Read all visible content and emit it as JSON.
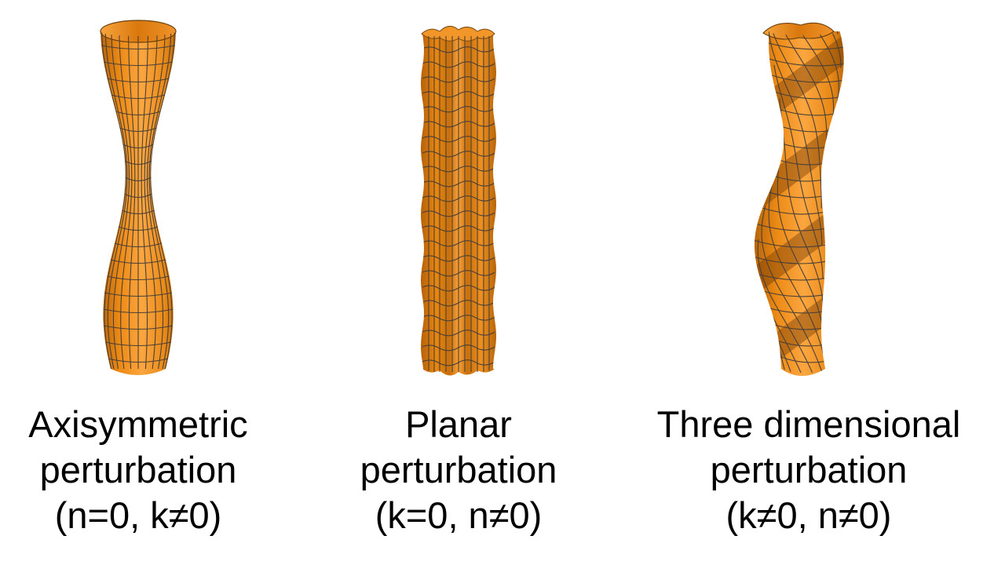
{
  "colors": {
    "surface_light": "#f9a23e",
    "surface_mid": "#e8860f",
    "surface_dark": "#a85a05",
    "mesh": "#4a4038",
    "text": "#000000"
  },
  "panels": [
    {
      "id": "axisymmetric",
      "caption": {
        "line1": "Axisymmetric",
        "line2": "perturbation",
        "line3": "(n=0, k≠0)"
      }
    },
    {
      "id": "planar",
      "caption": {
        "line1": "Planar",
        "line2": "perturbation",
        "line3": "(k=0, n≠0)"
      }
    },
    {
      "id": "three-dimensional",
      "caption": {
        "line1": "Three dimensional",
        "line2": "perturbation",
        "line3": "(k≠0, n≠0)"
      }
    }
  ]
}
